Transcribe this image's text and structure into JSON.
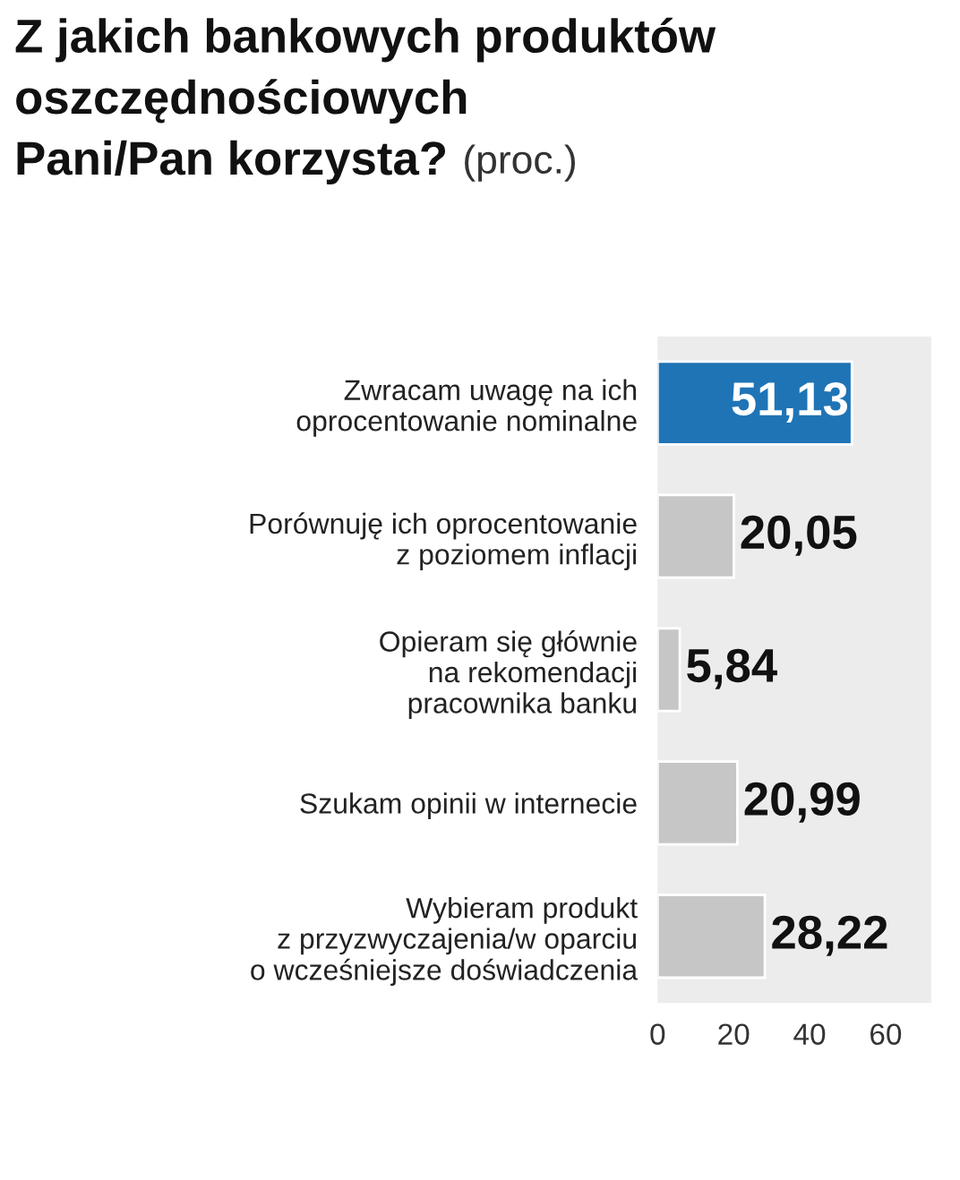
{
  "chart_data": {
    "type": "bar",
    "orientation": "horizontal",
    "title": "Z jakich bankowych produktów\noszczędnościowych\nPani/Pan korzysta?",
    "subtitle": "(proc.)",
    "categories": [
      "Zwracam uwagę na ich\noprocentowanie nominalne",
      "Porównuję ich oprocentowanie\nz poziomem inflacji",
      "Opieram się głównie\nna rekomendacji\npracownika banku",
      "Szukam opinii w internecie",
      "Wybieram produkt\nz przyzwyczajenia/w oparciu\no wcześniejsze doświadczenia"
    ],
    "values": [
      51.13,
      20.05,
      5.84,
      20.99,
      28.22
    ],
    "value_labels": [
      "51,13",
      "20,05",
      "5,84",
      "20,99",
      "28,22"
    ],
    "colors": [
      "#1f74b6",
      "#c6c6c6",
      "#c6c6c6",
      "#c6c6c6",
      "#c6c6c6"
    ],
    "xlim": [
      0,
      72
    ],
    "xticks": [
      0,
      20,
      40,
      60
    ],
    "grid": false,
    "legend": false
  }
}
